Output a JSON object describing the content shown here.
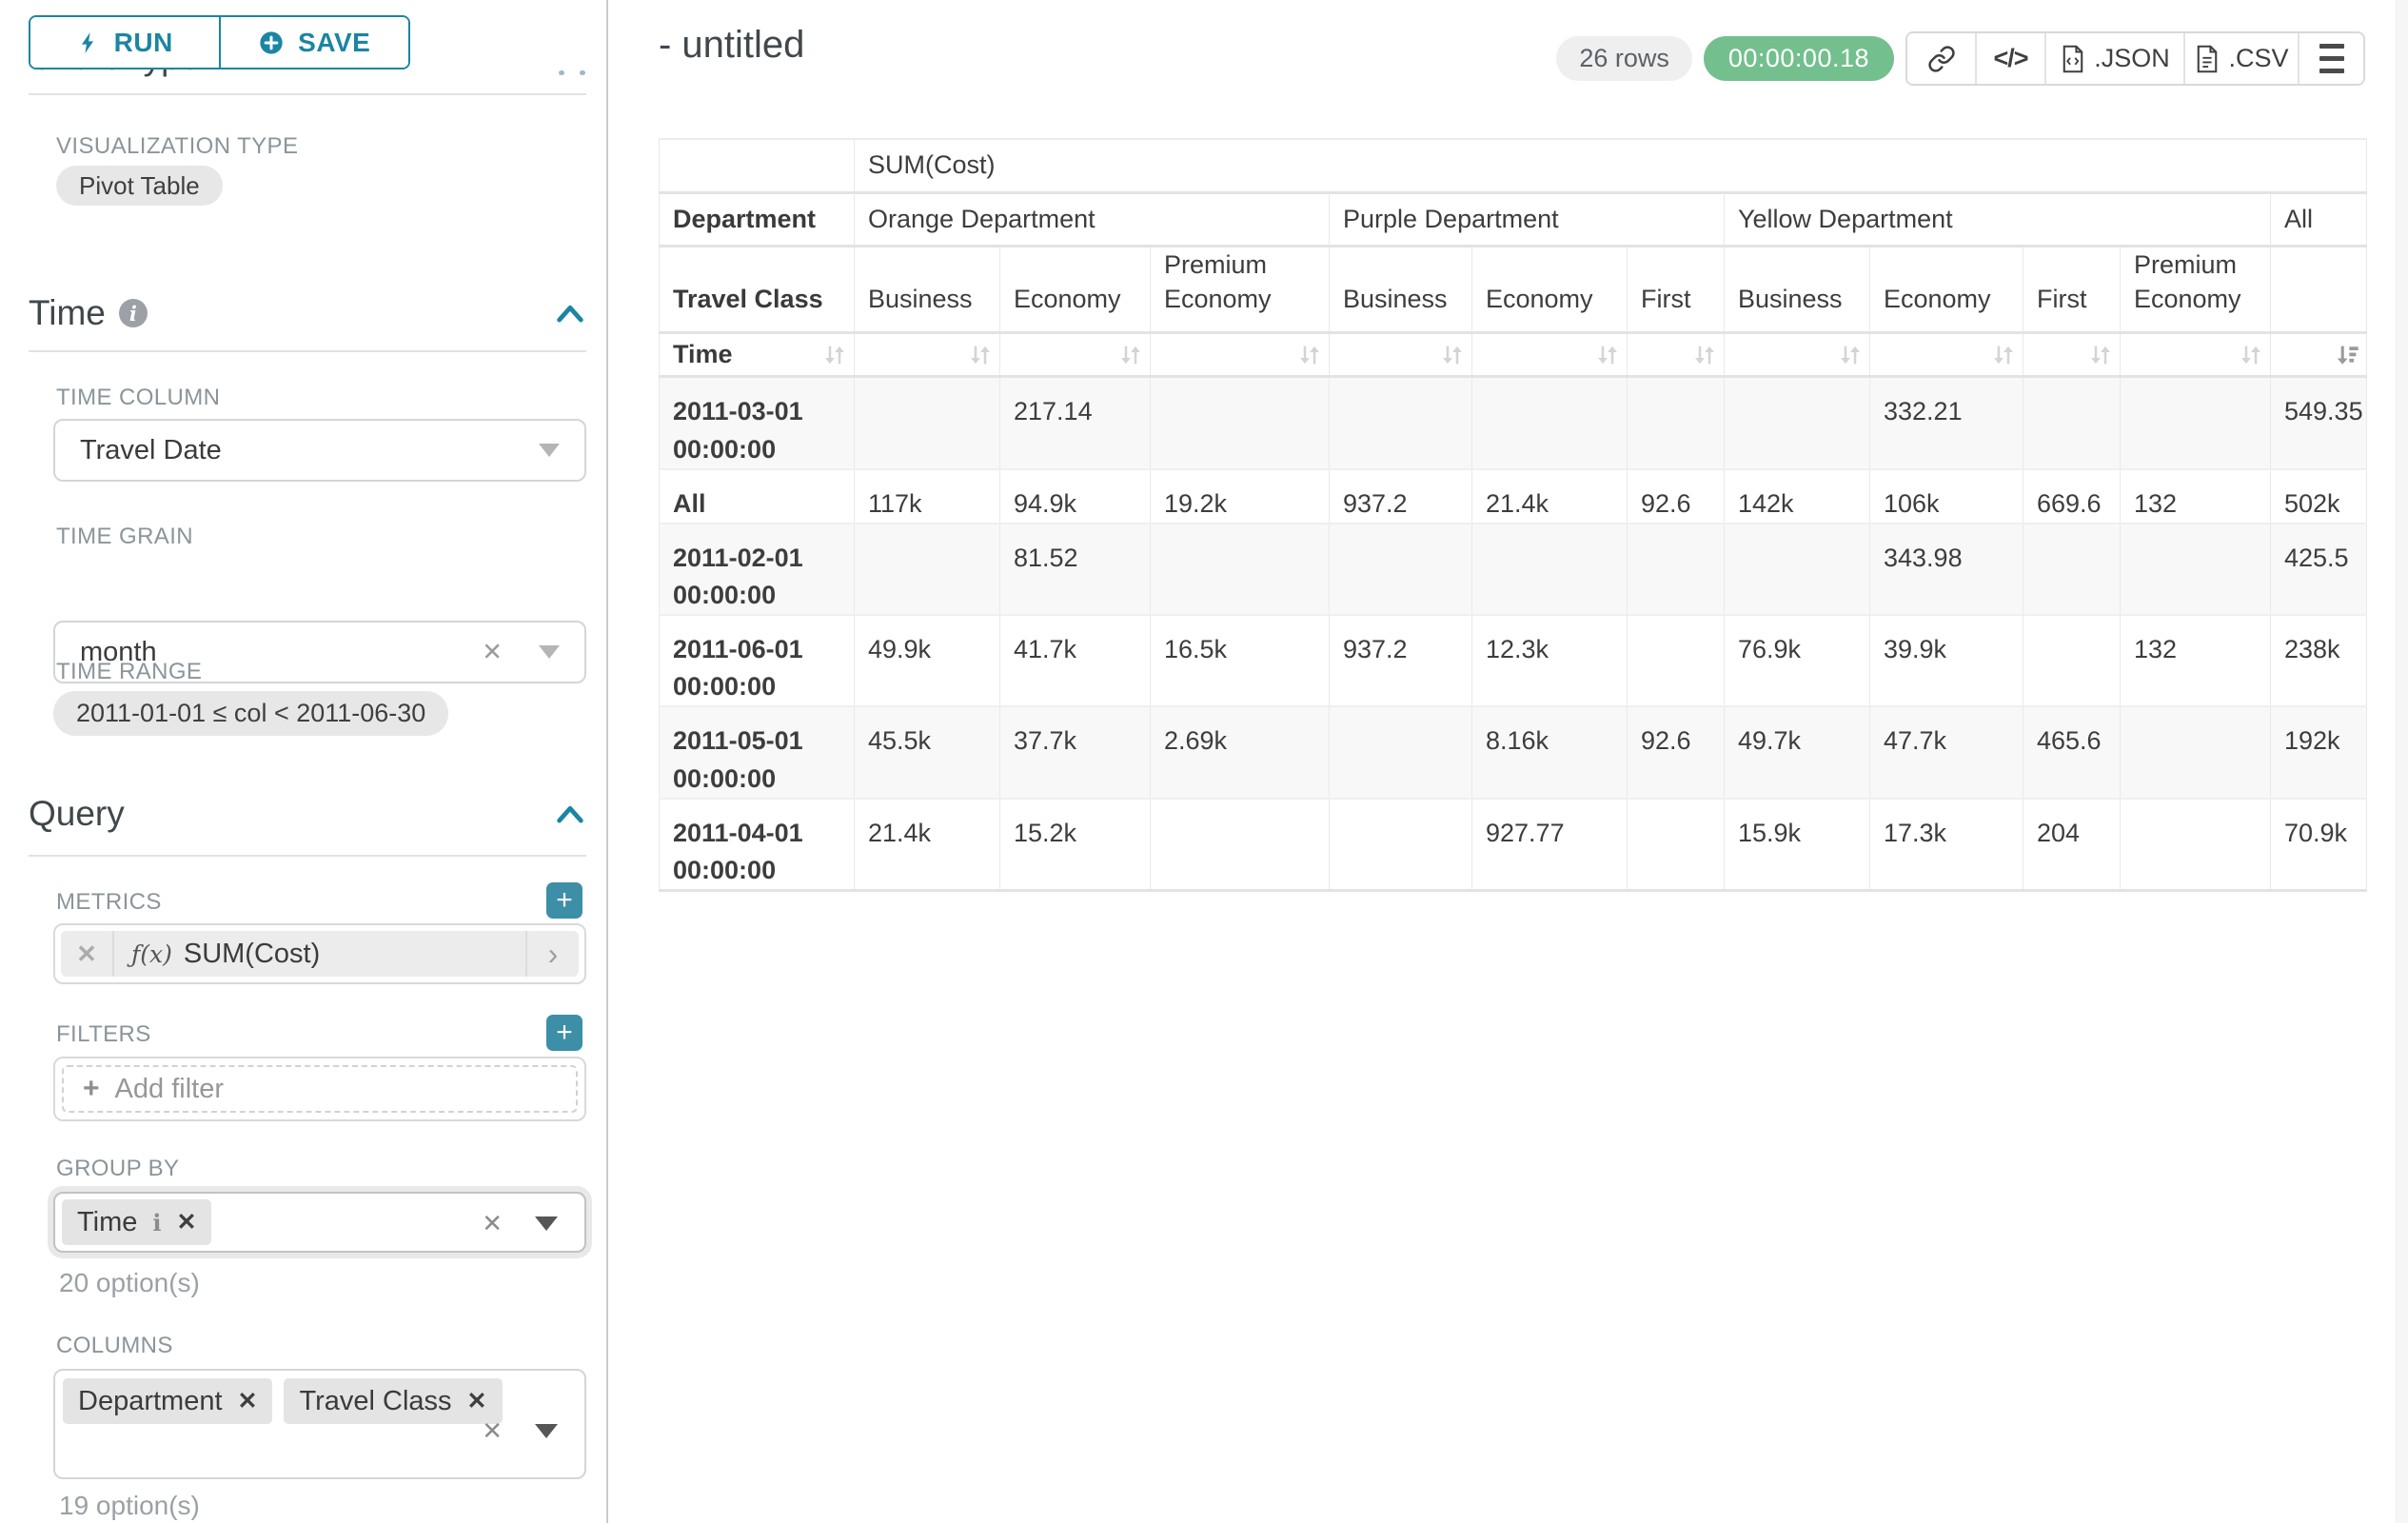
{
  "colors": {
    "accent_teal": "#1b85a4",
    "plus_teal": "#3c8fa6",
    "timer_green": "#74bf8e",
    "pill_gray": "#e7e7e7",
    "tag_gray": "#e4e4e4",
    "table_border": "#e9e9e9",
    "table_band": "#e3e3e3",
    "label_gray": "#8a959b",
    "text_dark": "#3b4144",
    "muted_text": "#9aa1a6",
    "stripe": "#f8f8f8",
    "icon_gray": "#d4d4d4",
    "sort_active": "#9a9a9a"
  },
  "sidebar": {
    "run_label": "RUN",
    "save_label": "SAVE",
    "chart_type_heading": "Chart Type",
    "visualization_type_label": "VISUALIZATION TYPE",
    "visualization_type_value": "Pivot Table",
    "time": {
      "heading": "Time",
      "time_column_label": "TIME COLUMN",
      "time_column_value": "Travel Date",
      "time_grain_label": "TIME GRAIN",
      "time_grain_value": "month",
      "time_range_label": "TIME RANGE",
      "time_range_value": "2011-01-01 ≤ col < 2011-06-30"
    },
    "query": {
      "heading": "Query",
      "metrics_label": "METRICS",
      "metric_fx": "ƒ(x)",
      "metric_value": "SUM(Cost)",
      "filters_label": "FILTERS",
      "add_filter_label": "Add filter",
      "group_by_label": "GROUP BY",
      "group_by_tag": "Time",
      "group_by_options": "20 option(s)",
      "columns_label": "COLUMNS",
      "columns_tag_1": "Department",
      "columns_tag_2": "Travel Class",
      "columns_options": "19 option(s)"
    }
  },
  "header": {
    "title": "- untitled",
    "rows_badge": "26 rows",
    "timer": "00:00:00.18",
    "json_label": ".JSON",
    "csv_label": ".CSV",
    "code_glyph": "</>"
  },
  "main": {
    "pivot_table": {
      "metric_header": "SUM(Cost)",
      "department_row_label": "Department",
      "travel_class_label": "Travel Class",
      "time_label": "Time",
      "groups": [
        {
          "label": "Orange Department",
          "cols": 3
        },
        {
          "label": "Purple Department",
          "cols": 3
        },
        {
          "label": "Yellow Department",
          "cols": 4
        },
        {
          "label": "All",
          "cols": 1
        }
      ],
      "class_headers": [
        "Business",
        "Economy",
        "Premium Economy",
        "Business",
        "Economy",
        "First",
        "Business",
        "Economy",
        "First",
        "Premium Economy",
        ""
      ],
      "rows": [
        {
          "label": "2011-03-01 00:00:00",
          "values": [
            "",
            "217.14",
            "",
            "",
            "",
            "",
            "",
            "332.21",
            "",
            "",
            "549.35"
          ]
        },
        {
          "label": "All",
          "values": [
            "117k",
            "94.9k",
            "19.2k",
            "937.2",
            "21.4k",
            "92.6",
            "142k",
            "106k",
            "669.6",
            "132",
            "502k"
          ]
        },
        {
          "label": "2011-02-01 00:00:00",
          "values": [
            "",
            "81.52",
            "",
            "",
            "",
            "",
            "",
            "343.98",
            "",
            "",
            "425.5"
          ]
        },
        {
          "label": "2011-06-01 00:00:00",
          "values": [
            "49.9k",
            "41.7k",
            "16.5k",
            "937.2",
            "12.3k",
            "",
            "76.9k",
            "39.9k",
            "",
            "132",
            "238k"
          ]
        },
        {
          "label": "2011-05-01 00:00:00",
          "values": [
            "45.5k",
            "37.7k",
            "2.69k",
            "",
            "8.16k",
            "92.6",
            "49.7k",
            "47.7k",
            "465.6",
            "",
            "192k"
          ]
        },
        {
          "label": "2011-04-01 00:00:00",
          "values": [
            "21.4k",
            "15.2k",
            "",
            "",
            "927.77",
            "",
            "15.9k",
            "17.3k",
            "204",
            "",
            "70.9k"
          ]
        }
      ]
    }
  }
}
